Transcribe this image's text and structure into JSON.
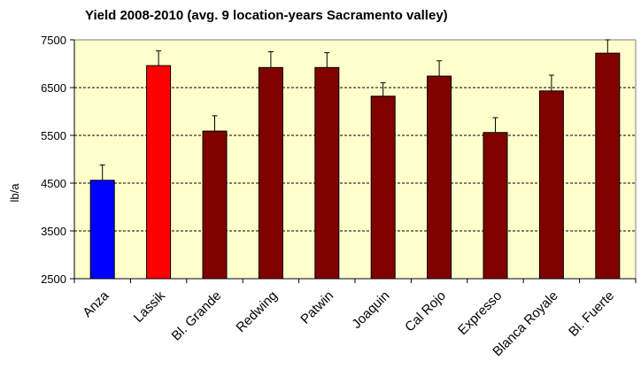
{
  "chart_data": {
    "type": "bar",
    "title": "Yield 2008-2010 (avg. 9 location-years Sacramento valley)",
    "ylabel": "lb/a",
    "xlabel": "",
    "ylim": [
      2500,
      7500
    ],
    "yticks": [
      2500,
      3500,
      4500,
      5500,
      6500,
      7500
    ],
    "grid": true,
    "categories": [
      "Anza",
      "Lassik",
      "Bl. Grande",
      "Redwing",
      "Patwin",
      "Joaquin",
      "Cal Rojo",
      "Expresso",
      "Blanca Royale",
      "Bl. Fuerte"
    ],
    "values": [
      4560,
      6960,
      5590,
      6920,
      6920,
      6320,
      6740,
      5560,
      6430,
      7220
    ],
    "error_upper": [
      4880,
      7270,
      5910,
      7250,
      7230,
      6600,
      7060,
      5870,
      6760,
      7500
    ],
    "bar_colors": [
      "#0000ff",
      "#ff0000",
      "#800000",
      "#800000",
      "#800000",
      "#800000",
      "#800000",
      "#800000",
      "#800000",
      "#800000"
    ],
    "plot_background": "#ffffcc"
  }
}
